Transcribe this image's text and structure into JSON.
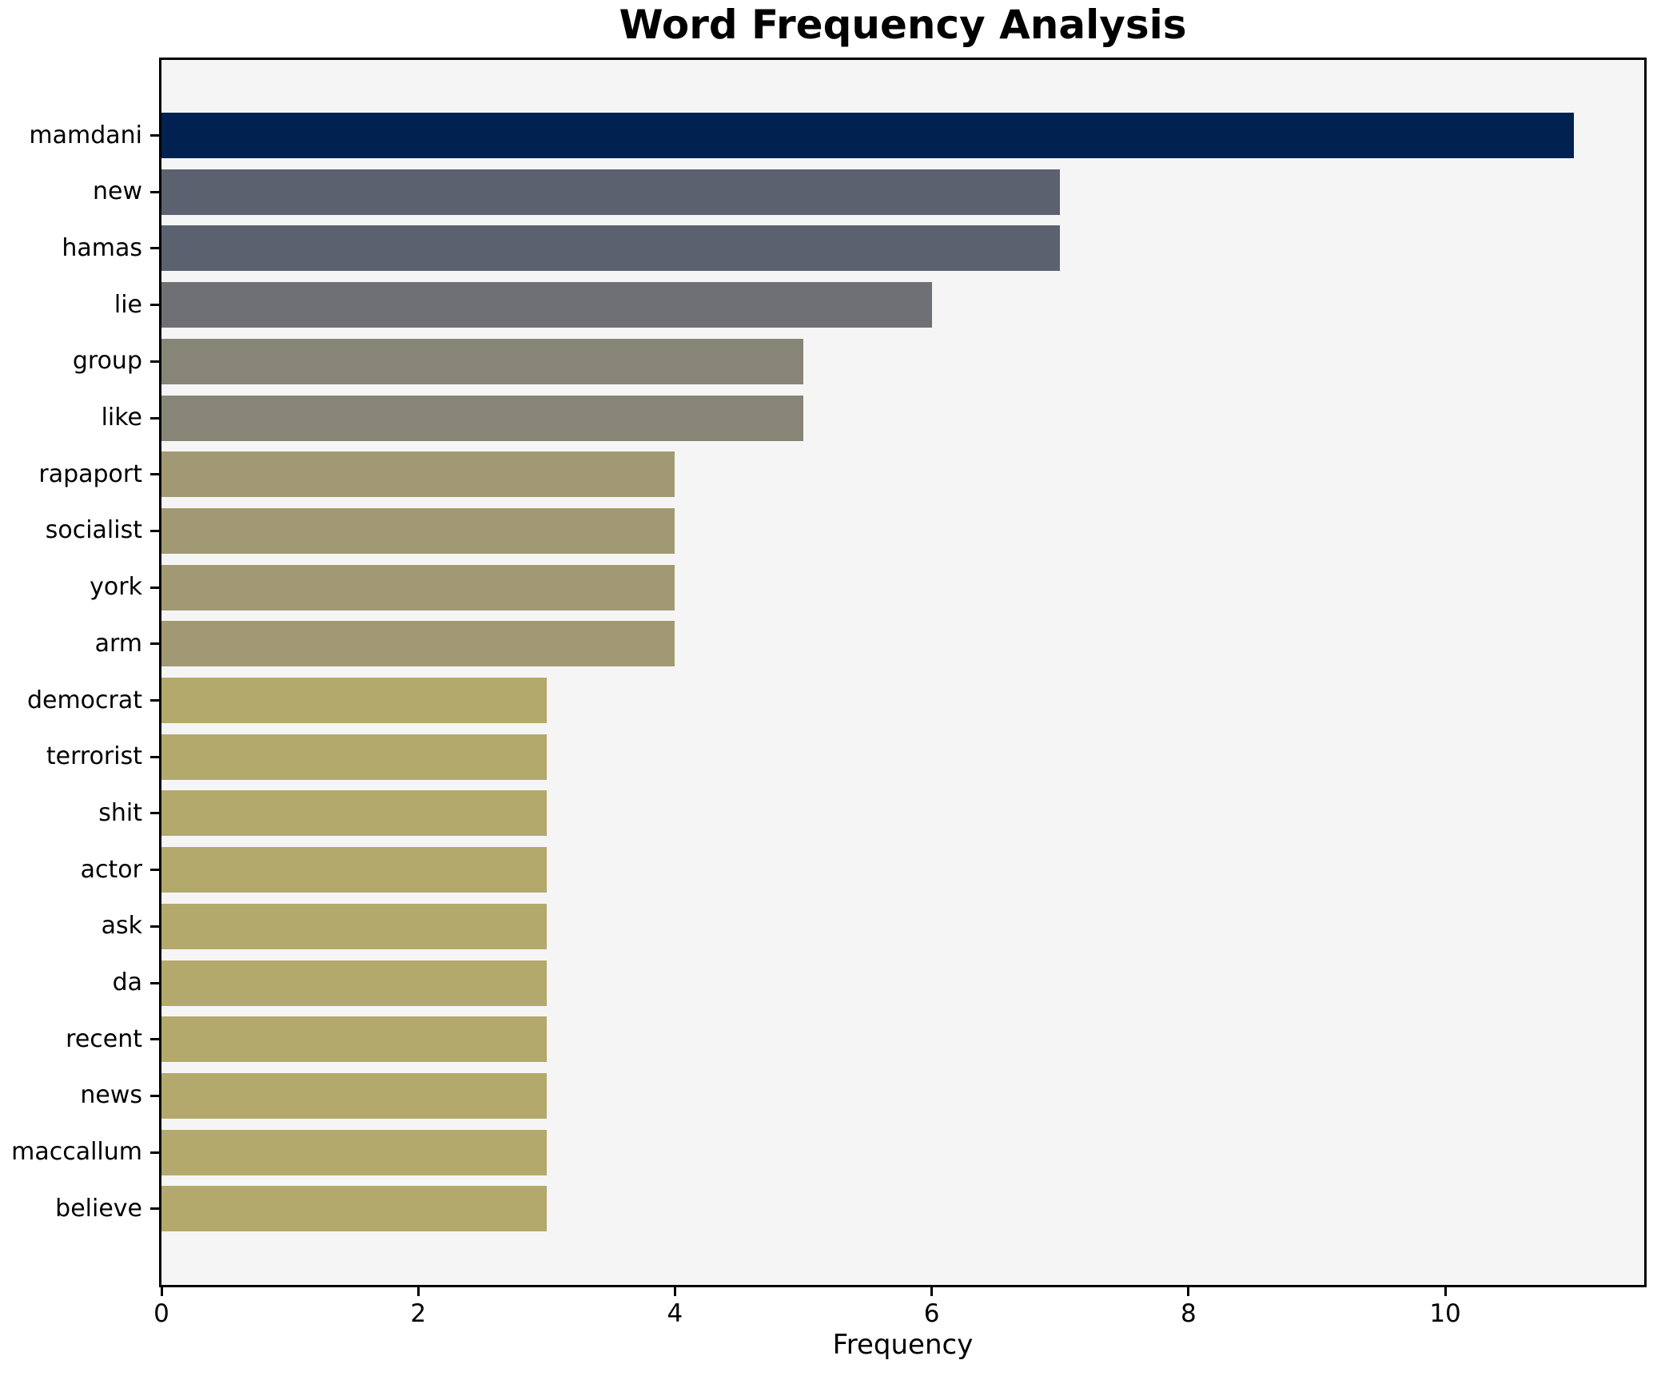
{
  "chart_data": {
    "type": "bar",
    "orientation": "horizontal",
    "title": "Word Frequency Analysis",
    "xlabel": "Frequency",
    "ylabel": "",
    "categories": [
      "mamdani",
      "new",
      "hamas",
      "lie",
      "group",
      "like",
      "rapaport",
      "socialist",
      "york",
      "arm",
      "democrat",
      "terrorist",
      "shit",
      "actor",
      "ask",
      "da",
      "recent",
      "news",
      "maccallum",
      "believe"
    ],
    "values": [
      11,
      7,
      7,
      6,
      5,
      5,
      4,
      4,
      4,
      4,
      3,
      3,
      3,
      3,
      3,
      3,
      3,
      3,
      3,
      3
    ],
    "bar_colors": [
      "#012150",
      "#5c6170",
      "#5c6170",
      "#6f7073",
      "#868576",
      "#868576",
      "#a19973",
      "#a19973",
      "#a19973",
      "#a19973",
      "#b3a96c",
      "#b3a96c",
      "#b3a96c",
      "#b3a96c",
      "#b3a96c",
      "#b3a96c",
      "#b3a96c",
      "#b3a96c",
      "#b3a96c",
      "#b3a96c"
    ],
    "xticks": [
      0,
      2,
      4,
      6,
      8,
      10
    ],
    "xlim": [
      0,
      11.55
    ],
    "grid": false,
    "legend_position": "none",
    "plot_background": "#f5f5f6",
    "figure_background": "#ffffff",
    "axis_color": "#000000"
  }
}
